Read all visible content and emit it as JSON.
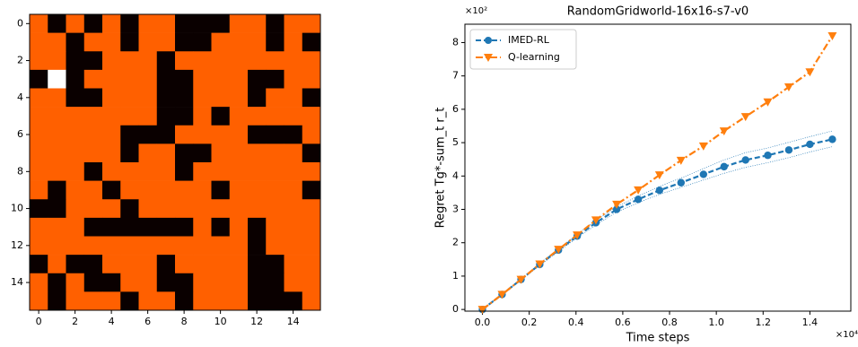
{
  "chart_data": [
    {
      "type": "heatmap",
      "z": [
        [
          0,
          1,
          0,
          1,
          0,
          1,
          0,
          0,
          1,
          1,
          1,
          0,
          0,
          1,
          0,
          0
        ],
        [
          0,
          0,
          1,
          0,
          0,
          1,
          0,
          0,
          1,
          1,
          0,
          0,
          0,
          1,
          0,
          1
        ],
        [
          0,
          0,
          1,
          1,
          0,
          0,
          0,
          1,
          0,
          0,
          0,
          0,
          0,
          0,
          0,
          0
        ],
        [
          1,
          2,
          1,
          0,
          0,
          0,
          0,
          1,
          1,
          0,
          0,
          0,
          1,
          1,
          0,
          0
        ],
        [
          0,
          0,
          1,
          1,
          0,
          0,
          0,
          1,
          1,
          0,
          0,
          0,
          1,
          0,
          0,
          1
        ],
        [
          0,
          0,
          0,
          0,
          0,
          0,
          0,
          1,
          1,
          0,
          1,
          0,
          0,
          0,
          0,
          0
        ],
        [
          0,
          0,
          0,
          0,
          0,
          1,
          1,
          1,
          0,
          0,
          0,
          0,
          1,
          1,
          1,
          0
        ],
        [
          0,
          0,
          0,
          0,
          0,
          1,
          0,
          0,
          1,
          1,
          0,
          0,
          0,
          0,
          0,
          1
        ],
        [
          0,
          0,
          0,
          1,
          0,
          0,
          0,
          0,
          1,
          0,
          0,
          0,
          0,
          0,
          0,
          0
        ],
        [
          0,
          1,
          0,
          0,
          1,
          0,
          0,
          0,
          0,
          0,
          1,
          0,
          0,
          0,
          0,
          1
        ],
        [
          1,
          1,
          0,
          0,
          0,
          1,
          0,
          0,
          0,
          0,
          0,
          0,
          0,
          0,
          0,
          0
        ],
        [
          0,
          0,
          0,
          1,
          1,
          1,
          1,
          1,
          1,
          0,
          1,
          0,
          1,
          0,
          0,
          0
        ],
        [
          0,
          0,
          0,
          0,
          0,
          0,
          0,
          0,
          0,
          0,
          0,
          0,
          1,
          0,
          0,
          0
        ],
        [
          1,
          0,
          1,
          1,
          0,
          0,
          0,
          1,
          0,
          0,
          0,
          0,
          1,
          1,
          0,
          0
        ],
        [
          0,
          1,
          0,
          1,
          1,
          0,
          0,
          1,
          1,
          0,
          0,
          0,
          1,
          1,
          0,
          0
        ],
        [
          0,
          1,
          0,
          0,
          0,
          1,
          0,
          0,
          1,
          0,
          0,
          0,
          1,
          1,
          1,
          0
        ]
      ],
      "colors": [
        "#ff6000",
        "#0a0000",
        "#ffffff"
      ],
      "xlim": [
        -0.5,
        15.5
      ],
      "ylim": [
        15.5,
        -0.5
      ],
      "xticks": [
        0,
        2,
        4,
        6,
        8,
        10,
        12,
        14
      ],
      "yticks": [
        0,
        2,
        4,
        6,
        8,
        10,
        12,
        14
      ]
    },
    {
      "type": "line",
      "title": "RandomGridworld-16x16-s7-v0",
      "xlabel": "Time steps",
      "ylabel": "Regret Tg*-sum_t r_t",
      "x_offset_label": "×10⁴",
      "y_offset_label": "×10²",
      "x": [
        0,
        0.084,
        0.165,
        0.245,
        0.325,
        0.405,
        0.485,
        0.574,
        0.666,
        0.757,
        0.849,
        0.945,
        1.033,
        1.125,
        1.22,
        1.31,
        1.4,
        1.496
      ],
      "series": [
        {
          "name": "IMED-RL",
          "color": "#1f77b4",
          "dash": "6,3",
          "marker": "circle",
          "values": [
            0,
            0.45,
            0.9,
            1.35,
            1.78,
            2.2,
            2.6,
            3.0,
            3.3,
            3.57,
            3.8,
            4.05,
            4.28,
            4.48,
            4.62,
            4.78,
            4.95,
            5.1
          ],
          "lower": [
            0,
            0.44,
            0.88,
            1.32,
            1.74,
            2.15,
            2.53,
            2.92,
            3.2,
            3.45,
            3.66,
            3.88,
            4.08,
            4.26,
            4.4,
            4.55,
            4.72,
            4.88
          ],
          "upper": [
            0,
            0.46,
            0.92,
            1.38,
            1.82,
            2.25,
            2.67,
            3.08,
            3.4,
            3.69,
            3.94,
            4.22,
            4.48,
            4.7,
            4.84,
            5.01,
            5.18,
            5.35
          ]
        },
        {
          "name": "Q-learning",
          "color": "#ff7f0e",
          "dash": "8,3,2,3",
          "marker": "triangle",
          "values": [
            0,
            0.45,
            0.9,
            1.36,
            1.8,
            2.23,
            2.68,
            3.15,
            3.58,
            4.03,
            4.47,
            4.9,
            5.35,
            5.78,
            6.22,
            6.67,
            7.12,
            8.2
          ]
        }
      ],
      "xlim": [
        -0.075,
        1.575
      ],
      "ylim": [
        -0.05,
        8.55
      ],
      "xticks": [
        {
          "value": 0,
          "label": "0.0"
        },
        {
          "value": 0.2,
          "label": "0.2"
        },
        {
          "value": 0.4,
          "label": "0.4"
        },
        {
          "value": 0.6,
          "label": "0.6"
        },
        {
          "value": 0.8,
          "label": "0.8"
        },
        {
          "value": 1,
          "label": "1.0"
        },
        {
          "value": 1.2,
          "label": "1.2"
        },
        {
          "value": 1.4,
          "label": "1.4"
        }
      ],
      "yticks": [
        0,
        1,
        2,
        3,
        4,
        5,
        6,
        7,
        8
      ],
      "legend": "upper-left"
    }
  ]
}
